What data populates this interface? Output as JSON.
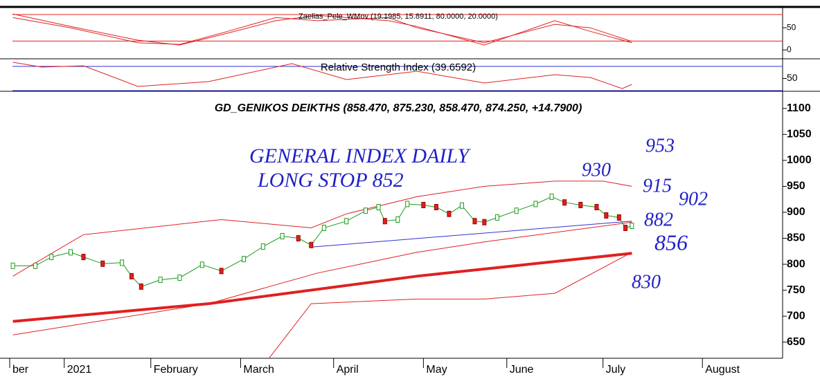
{
  "chart_data": [
    {
      "type": "line",
      "title": "Zaelias_Pele_WMov (19.1985, 15.8911, 80.0000, 20.0000)",
      "xlim": [
        0,
        241
      ],
      "ylim": [
        -20,
        94
      ],
      "yticks": [
        50,
        0
      ],
      "hlines": [
        80,
        20
      ],
      "hline_color": "#e02020",
      "series": [
        {
          "color": "#e02020",
          "x": [
            1,
            19,
            40,
            53,
            68,
            83,
            96,
            118,
            127,
            148,
            170,
            181,
            194
          ],
          "values": [
            73,
            50,
            16,
            12.5,
            42,
            73,
            66,
            73,
            50,
            16,
            58,
            50,
            19
          ]
        },
        {
          "color": "#e02020",
          "x": [
            1,
            19,
            40,
            53,
            68,
            83,
            96,
            118,
            127,
            148,
            170,
            181,
            194
          ],
          "values": [
            81,
            53,
            22,
            11,
            38,
            66,
            78,
            66,
            53,
            11,
            66,
            42,
            16
          ]
        }
      ]
    },
    {
      "type": "line",
      "title": "Relative Strength Index (39.6592)",
      "xlim": [
        0,
        241
      ],
      "ylim": [
        28.9,
        82.6
      ],
      "yticks": [
        50
      ],
      "hlines": [
        70,
        30
      ],
      "hline_color": "#3030d0",
      "series": [
        {
          "color": "#e02020",
          "x": [
            1,
            10,
            23,
            40,
            62,
            88,
            105,
            127,
            148,
            170,
            181,
            191,
            194
          ],
          "values": [
            76.9,
            68.9,
            71.1,
            36.9,
            44.9,
            74.6,
            48.3,
            62,
            42.6,
            56.3,
            51.7,
            33.4,
            40.3
          ]
        }
      ]
    },
    {
      "type": "line",
      "title": "GD_GENIKOS DEIKTHS (858.470, 875.230, 858.470, 874.250, +14.7900)",
      "xlim": [
        0,
        241
      ],
      "ylim": [
        619,
        1133
      ],
      "yticks": [
        1100,
        1050,
        1000,
        950,
        900,
        850,
        800,
        750,
        700,
        650
      ],
      "xticks": [
        {
          "value": 0,
          "label": "ber"
        },
        {
          "value": 17,
          "label": "2021"
        },
        {
          "value": 44,
          "label": "February"
        },
        {
          "value": 72,
          "label": "March"
        },
        {
          "value": 101,
          "label": "April"
        },
        {
          "value": 129,
          "label": "May"
        },
        {
          "value": 155,
          "label": "June"
        },
        {
          "value": 185,
          "label": "July"
        },
        {
          "value": 216,
          "label": "August"
        }
      ],
      "series": [
        {
          "color": "#e02020",
          "width": 1,
          "x": [
            1,
            23,
            66,
            94,
            105,
            127,
            148,
            170,
            185,
            194
          ],
          "values": [
            777,
            857,
            886,
            870,
            897,
            930,
            950,
            960,
            960,
            950
          ]
        },
        {
          "color": "#e02020",
          "width": 1,
          "x": [
            1,
            62,
            96,
            127,
            148,
            194
          ],
          "values": [
            664,
            724,
            783,
            823,
            843,
            881
          ]
        },
        {
          "color": "#e02020",
          "width": 1,
          "x": [
            81,
            94,
            127,
            148,
            170,
            194
          ],
          "values": [
            620,
            724,
            733,
            733,
            744,
            823
          ]
        },
        {
          "color": "#e02020",
          "width": 4,
          "x": [
            1,
            62,
            127,
            194
          ],
          "values": [
            690,
            724,
            777,
            821
          ]
        },
        {
          "color": "#3030d0",
          "width": 1,
          "x": [
            94,
            194
          ],
          "values": [
            833,
            883
          ]
        },
        {
          "color": "#1a9a1a",
          "width": 1,
          "markers": true,
          "x": [
            1,
            8,
            13,
            19,
            23,
            29,
            35,
            38,
            41,
            47,
            53,
            60,
            66,
            73,
            79,
            85,
            90,
            94,
            98,
            105,
            111,
            115,
            117,
            121,
            124,
            129,
            133,
            137,
            141,
            145,
            148,
            152,
            158,
            164,
            169,
            173,
            178,
            183,
            186,
            190,
            192,
            194
          ],
          "values": [
            797,
            797,
            814,
            823,
            814,
            801,
            803,
            777,
            757,
            770,
            774,
            799,
            787,
            810,
            834,
            854,
            850,
            837,
            870,
            883,
            903,
            910,
            883,
            886,
            916,
            914,
            910,
            897,
            913,
            883,
            881,
            890,
            903,
            916,
            930,
            919,
            914,
            910,
            894,
            890,
            870,
            874
          ]
        }
      ],
      "annotations": [
        "GENERAL INDEX DAILY",
        "LONG STOP 852",
        "930",
        "953",
        "915",
        "902",
        "882",
        "856",
        "830"
      ],
      "annotation_color": "#2020c8"
    }
  ]
}
